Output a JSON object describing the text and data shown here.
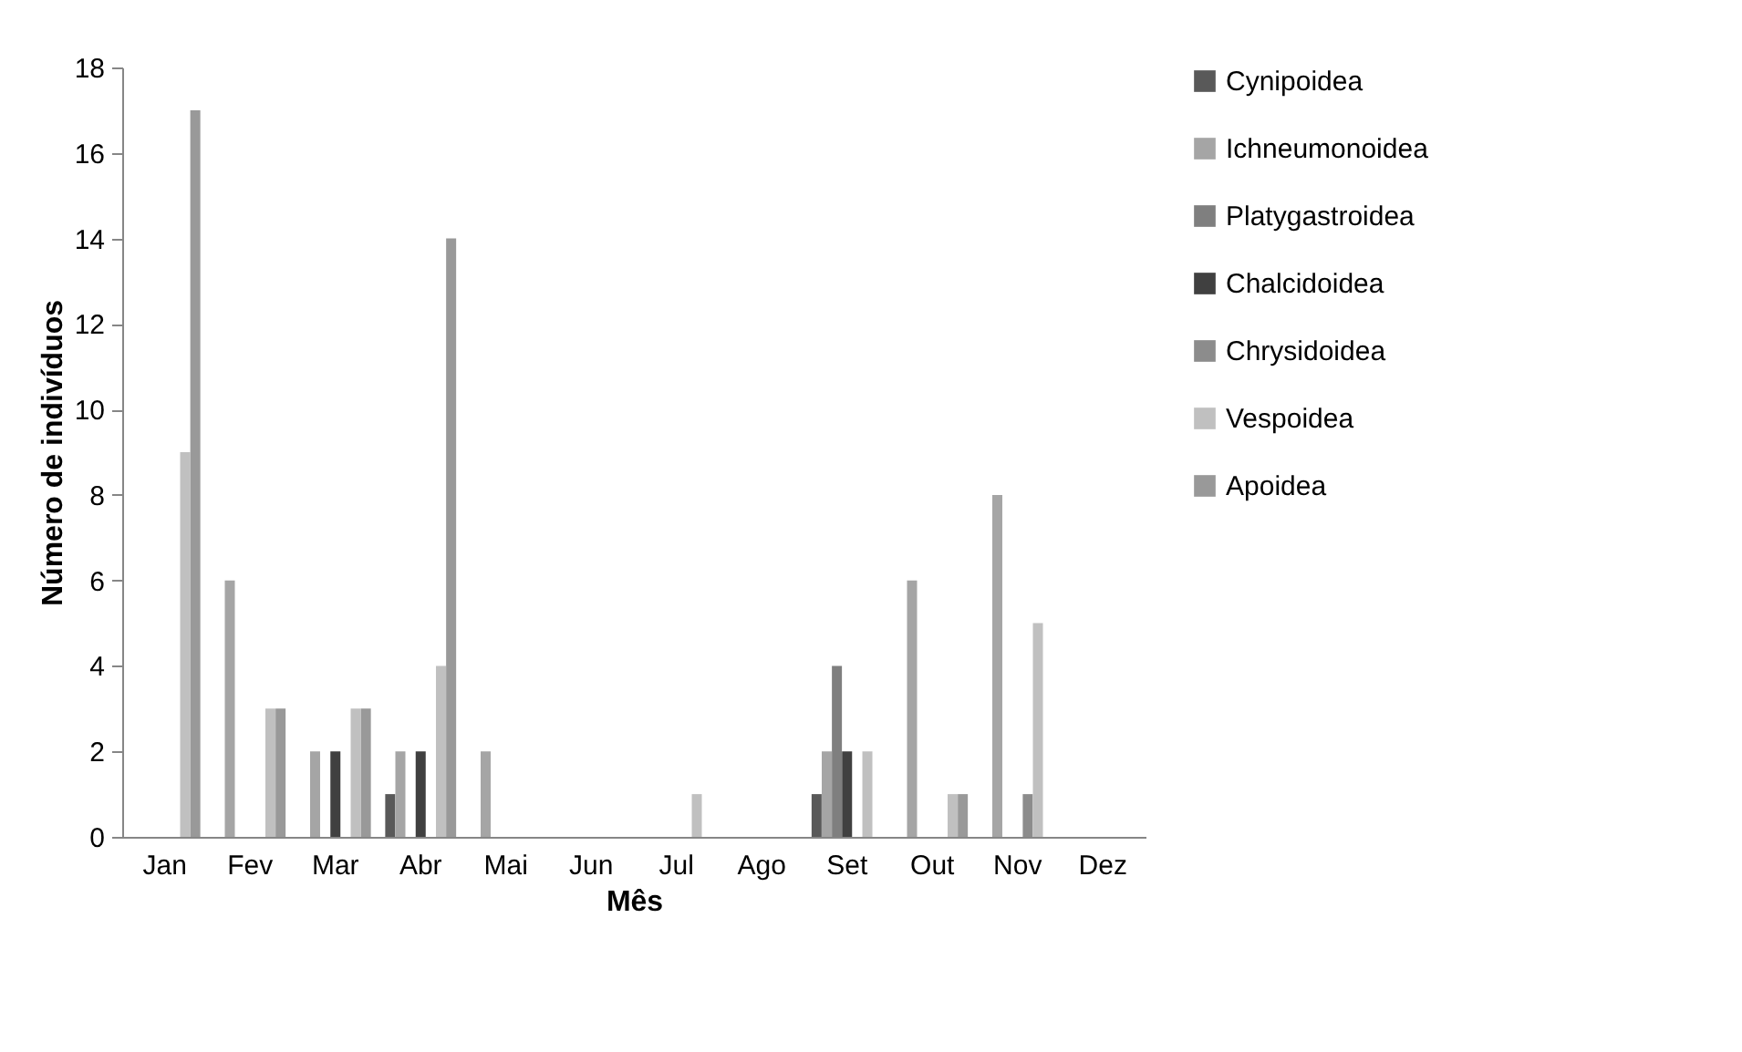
{
  "chart_data": {
    "type": "bar",
    "xlabel": "Mês",
    "ylabel": "Número de indivíduos",
    "categories": [
      "Jan",
      "Fev",
      "Mar",
      "Abr",
      "Mai",
      "Jun",
      "Jul",
      "Ago",
      "Set",
      "Out",
      "Nov",
      "Dez"
    ],
    "series": [
      {
        "name": "Cynipoidea",
        "color": "#595959",
        "values": [
          0,
          0,
          0,
          1,
          0,
          0,
          0,
          0,
          1,
          0,
          0,
          0
        ]
      },
      {
        "name": "Ichneumonoidea",
        "color": "#a5a5a5",
        "values": [
          0,
          6,
          2,
          2,
          2,
          0,
          0,
          0,
          2,
          6,
          8,
          0
        ]
      },
      {
        "name": "Platygastroidea",
        "color": "#7f7f7f",
        "values": [
          0,
          0,
          0,
          0,
          0,
          0,
          0,
          0,
          4,
          0,
          0,
          0
        ]
      },
      {
        "name": "Chalcidoidea",
        "color": "#404040",
        "values": [
          0,
          0,
          2,
          2,
          0,
          0,
          0,
          0,
          2,
          0,
          0,
          0
        ]
      },
      {
        "name": "Chrysidoidea",
        "color": "#8c8c8c",
        "values": [
          0,
          0,
          0,
          0,
          0,
          0,
          0,
          0,
          0,
          0,
          1,
          0
        ]
      },
      {
        "name": "Vespoidea",
        "color": "#c0c0c0",
        "values": [
          9,
          3,
          3,
          4,
          0,
          0,
          1,
          0,
          2,
          1,
          5,
          0
        ]
      },
      {
        "name": "Apoidea",
        "color": "#999999",
        "values": [
          17,
          3,
          3,
          14,
          0,
          0,
          0,
          0,
          0,
          1,
          0,
          0
        ]
      }
    ],
    "ylim": [
      0,
      18
    ],
    "yticks": [
      0,
      2,
      4,
      6,
      8,
      10,
      12,
      14,
      16,
      18
    ],
    "grid": false,
    "legend": "right"
  }
}
